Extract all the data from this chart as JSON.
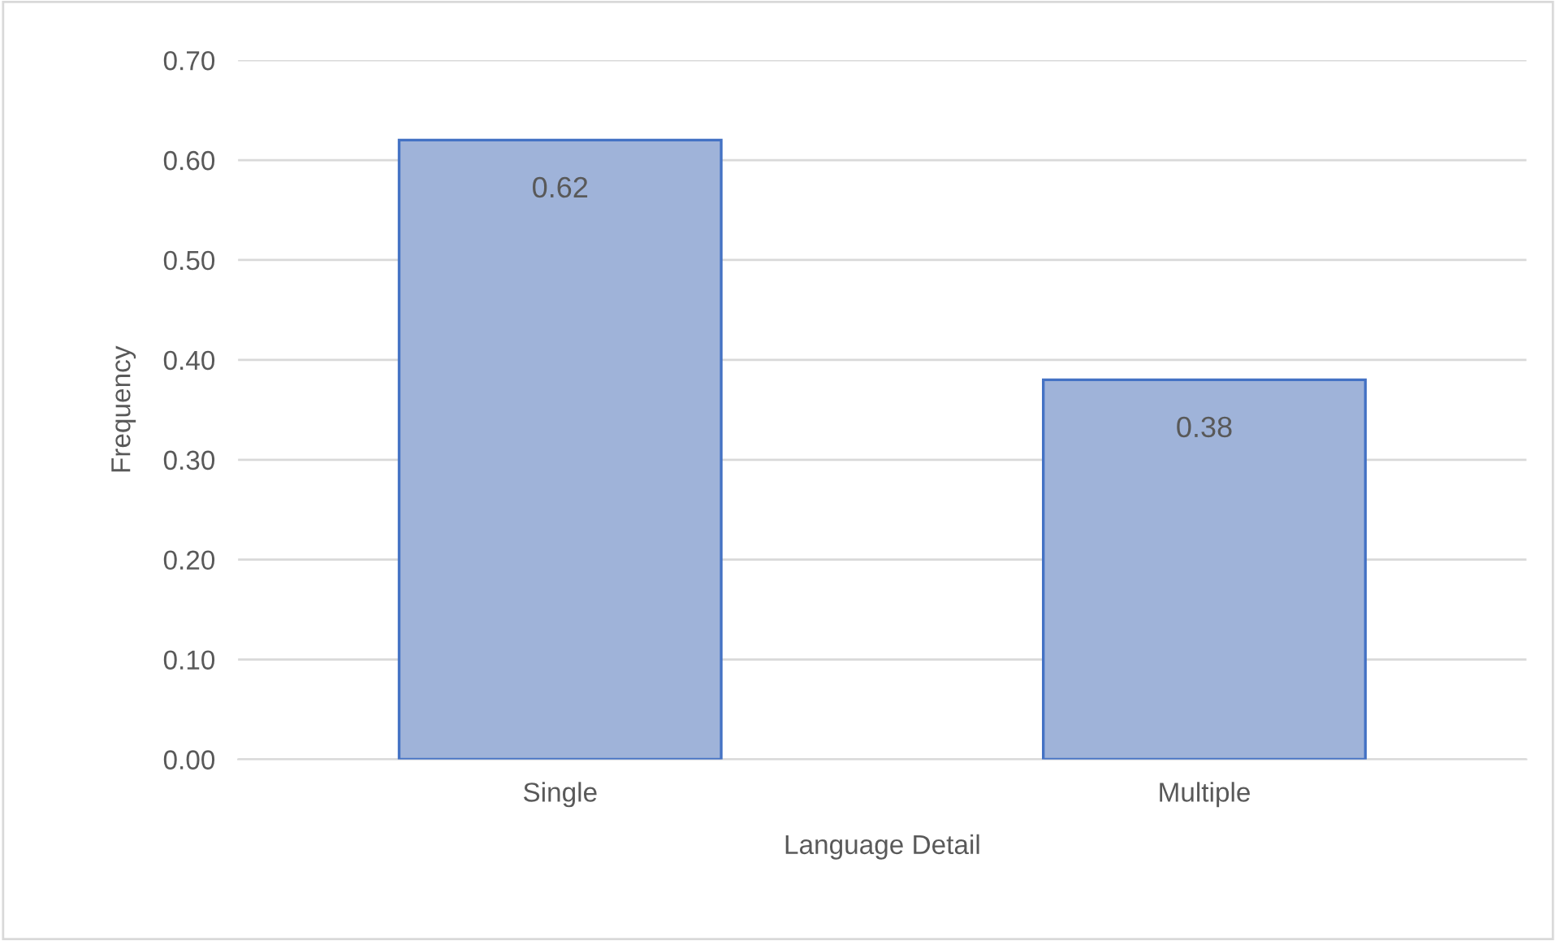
{
  "chart_data": {
    "type": "bar",
    "categories": [
      "Single",
      "Multiple"
    ],
    "values": [
      0.62,
      0.38
    ],
    "color": "#9fb3d9",
    "xlabel": "Language Detail",
    "ylabel": "Frequency",
    "ylim": [
      0,
      0.7
    ],
    "yticks": [
      {
        "value": 0,
        "label": "0.00"
      },
      {
        "value": 0.1,
        "label": "0.10"
      },
      {
        "value": 0.2,
        "label": "0.20"
      },
      {
        "value": 0.3,
        "label": "0.30"
      },
      {
        "value": 0.4,
        "label": "0.40"
      },
      {
        "value": 0.5,
        "label": "0.50"
      },
      {
        "value": 0.6,
        "label": "0.60"
      },
      {
        "value": 0.7,
        "label": "0.70"
      }
    ],
    "grid": "y",
    "data_labels": true
  }
}
